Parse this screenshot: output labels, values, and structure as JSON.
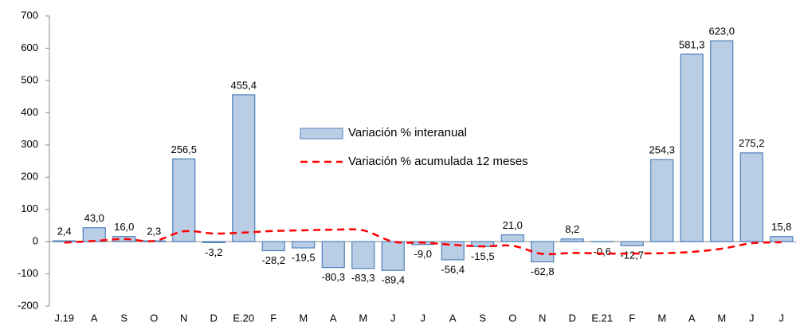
{
  "chart_data": {
    "type": "bar",
    "categories": [
      "J.19",
      "A",
      "S",
      "O",
      "N",
      "D",
      "E.20",
      "F",
      "M",
      "A",
      "M",
      "J",
      "J",
      "A",
      "S",
      "O",
      "N",
      "D",
      "E.21",
      "F",
      "M",
      "A",
      "M",
      "J",
      "J"
    ],
    "series": [
      {
        "name": "Variación % interanual",
        "type": "bar",
        "color": "#b9cde5",
        "edge_color": "#4f81bd",
        "values": [
          2.4,
          43.0,
          16.0,
          2.3,
          256.5,
          -3.2,
          455.4,
          -28.2,
          -19.5,
          -80.3,
          -83.3,
          -89.4,
          -9.0,
          -56.4,
          -15.5,
          21.0,
          -62.8,
          8.2,
          -0.6,
          -12.7,
          254.3,
          581.3,
          623.0,
          275.2,
          15.8
        ],
        "value_labels": [
          "2,4",
          "43,0",
          "16,0",
          "2,3",
          "256,5",
          "-3,2",
          "455,4",
          "-28,2",
          "-19,5",
          "-80,3",
          "-83,3",
          "-89,4",
          "-9,0",
          "-56,4",
          "-15,5",
          "21,0",
          "-62,8",
          "8,2",
          "-0,6",
          "-12,7",
          "254,3",
          "581,3",
          "623,0",
          "275,2",
          "15,8"
        ]
      },
      {
        "name": "Variación % acumulada 12 meses",
        "type": "line",
        "color": "#ff0000",
        "values": [
          -3,
          2,
          8,
          2,
          32,
          25,
          28,
          33,
          35,
          37,
          35,
          0,
          -3,
          -10,
          -15,
          -13,
          -38,
          -35,
          -37,
          -37,
          -36,
          -32,
          -22,
          -5,
          -2
        ]
      }
    ],
    "ylim": [
      -200,
      700
    ],
    "yticks": [
      -200,
      -100,
      0,
      100,
      200,
      300,
      400,
      500,
      600,
      700
    ],
    "grid": false
  }
}
